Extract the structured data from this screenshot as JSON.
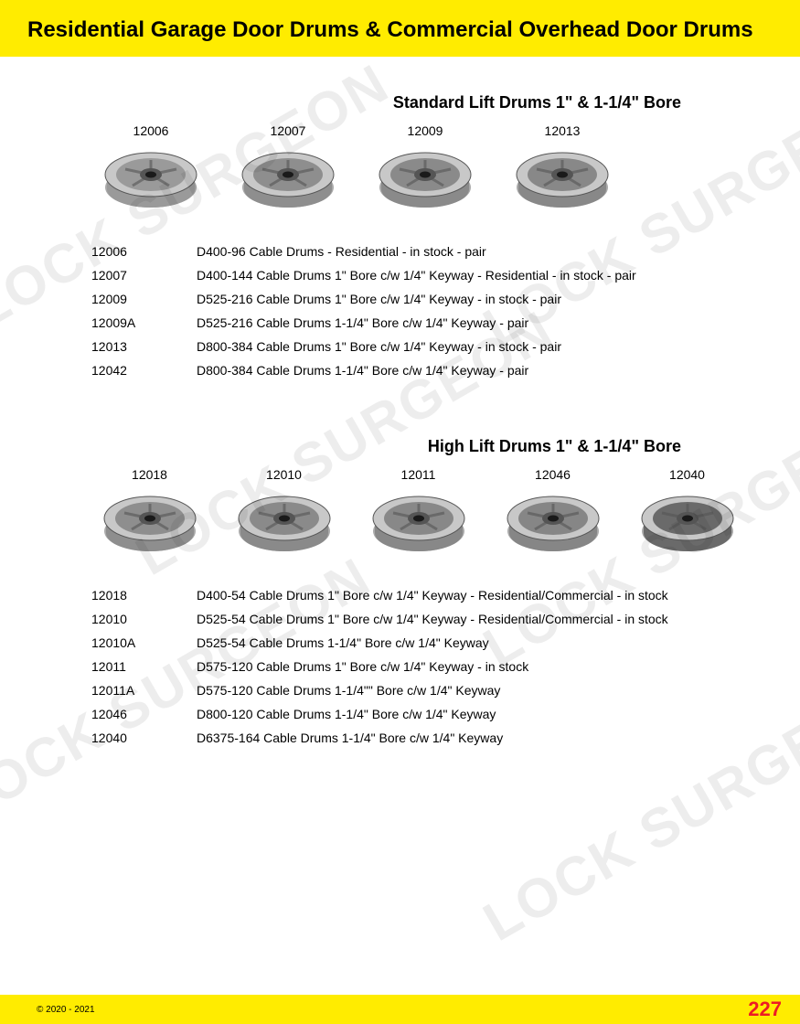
{
  "header": {
    "title": "Residential Garage Door Drums & Commercial Overhead Door Drums"
  },
  "watermark_text": "LOCK SURGEON",
  "sections": [
    {
      "title": "Standard Lift Drums 1\" & 1-1/4\" Bore",
      "drums": [
        {
          "label": "12006",
          "color": "#9a9a9a"
        },
        {
          "label": "12007",
          "color": "#8e8e8e"
        },
        {
          "label": "12009",
          "color": "#8a8a8a"
        },
        {
          "label": "12013",
          "color": "#888888"
        }
      ],
      "specs": [
        {
          "code": "12006",
          "desc": "D400-96 Cable Drums - Residential - in stock - pair"
        },
        {
          "code": "12007",
          "desc": "D400-144 Cable Drums 1\" Bore c/w 1/4\" Keyway - Residential - in stock - pair"
        },
        {
          "code": "12009",
          "desc": "D525-216 Cable Drums 1\" Bore c/w 1/4\" Keyway - in stock - pair"
        },
        {
          "code": "12009A",
          "desc": "D525-216 Cable Drums 1-1/4\" Bore c/w 1/4\" Keyway - pair"
        },
        {
          "code": "12013",
          "desc": "D800-384 Cable Drums 1\" Bore c/w 1/4\" Keyway - in stock - pair"
        },
        {
          "code": "12042",
          "desc": "D800-384 Cable Drums 1-1/4\" Bore c/w 1/4\" Keyway  - pair"
        }
      ]
    },
    {
      "title": "High Lift Drums 1\" & 1-1/4\" Bore",
      "drums": [
        {
          "label": "12018",
          "color": "#8e8e8e"
        },
        {
          "label": "12010",
          "color": "#8a8a8a"
        },
        {
          "label": "12011",
          "color": "#888888"
        },
        {
          "label": "12046",
          "color": "#868686"
        },
        {
          "label": "12040",
          "color": "#6a6a6a"
        }
      ],
      "specs": [
        {
          "code": "12018",
          "desc": "D400-54 Cable Drums 1\" Bore c/w 1/4\" Keyway - Residential/Commercial - in stock"
        },
        {
          "code": "12010",
          "desc": "D525-54 Cable Drums 1\" Bore c/w 1/4\" Keyway - Residential/Commercial - in stock"
        },
        {
          "code": "12010A",
          "desc": "D525-54 Cable Drums 1-1/4\" Bore c/w 1/4\" Keyway"
        },
        {
          "code": "12011",
          "desc": "D575-120 Cable Drums 1\" Bore c/w 1/4\" Keyway - in stock"
        },
        {
          "code": "12011A",
          "desc": "D575-120 Cable Drums 1-1/4\"\" Bore c/w 1/4\" Keyway"
        },
        {
          "code": "12046",
          "desc": "D800-120 Cable Drums 1-1/4\" Bore c/w 1/4\" Keyway"
        },
        {
          "code": "12040",
          "desc": "D6375-164 Cable Drums 1-1/4\" Bore c/w 1/4\" Keyway"
        }
      ]
    }
  ],
  "footer": {
    "copyright": "© 2020 - 2021",
    "page_number": "227"
  },
  "colors": {
    "yellow": "#ffec00",
    "red": "#ed1c24",
    "drum_base": "#9a9a9a",
    "drum_dark": "#555555",
    "drum_highlight": "#c8c8c8"
  }
}
